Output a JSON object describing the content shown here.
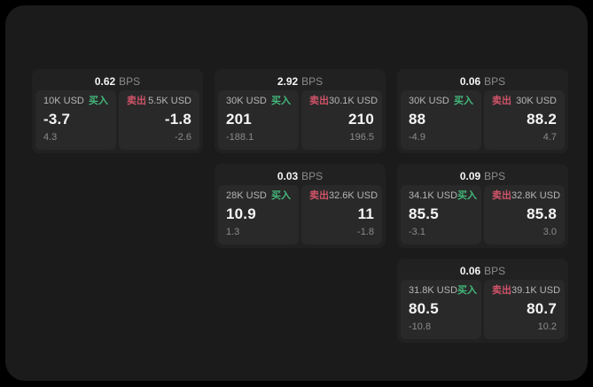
{
  "colors": {
    "panel_bg": "#1a1b1a",
    "card_bg": "#212121",
    "tile_bg": "#292929",
    "buy_green": "#43b87a",
    "sell_red": "#cf5368",
    "text_primary": "#f5f5f5",
    "text_secondary": "#b5b5b5",
    "text_muted": "#8b8b8b"
  },
  "cards": [
    {
      "bps": "0.62",
      "bps_unit": "BPS",
      "buy": {
        "size": "10K USD",
        "side_label": "买入",
        "price": "-3.7",
        "sub": "4.3"
      },
      "sell": {
        "side_label": "卖出",
        "size": "5.5K USD",
        "price": "-1.8",
        "sub": "-2.6"
      }
    },
    {
      "bps": "2.92",
      "bps_unit": "BPS",
      "buy": {
        "size": "30K USD",
        "side_label": "买入",
        "price": "201",
        "sub": "-188.1"
      },
      "sell": {
        "side_label": "卖出",
        "size": "30.1K USD",
        "price": "210",
        "sub": "196.5"
      }
    },
    {
      "bps": "0.06",
      "bps_unit": "BPS",
      "buy": {
        "size": "30K USD",
        "side_label": "买入",
        "price": "88",
        "sub": "-4.9"
      },
      "sell": {
        "side_label": "卖出",
        "size": "30K USD",
        "price": "88.2",
        "sub": "4.7"
      }
    },
    {
      "bps": "0.03",
      "bps_unit": "BPS",
      "buy": {
        "size": "28K USD",
        "side_label": "买入",
        "price": "10.9",
        "sub": "1.3"
      },
      "sell": {
        "side_label": "卖出",
        "size": "32.6K USD",
        "price": "11",
        "sub": "-1.8"
      }
    },
    {
      "bps": "0.09",
      "bps_unit": "BPS",
      "buy": {
        "size": "34.1K USD",
        "side_label": "买入",
        "price": "85.5",
        "sub": "-3.1"
      },
      "sell": {
        "side_label": "卖出",
        "size": "32.8K USD",
        "price": "85.8",
        "sub": "3.0"
      }
    },
    {
      "bps": "0.06",
      "bps_unit": "BPS",
      "buy": {
        "size": "31.8K USD",
        "side_label": "买入",
        "price": "80.5",
        "sub": "-10.8"
      },
      "sell": {
        "side_label": "卖出",
        "size": "39.1K USD",
        "price": "80.7",
        "sub": "10.2"
      }
    }
  ]
}
